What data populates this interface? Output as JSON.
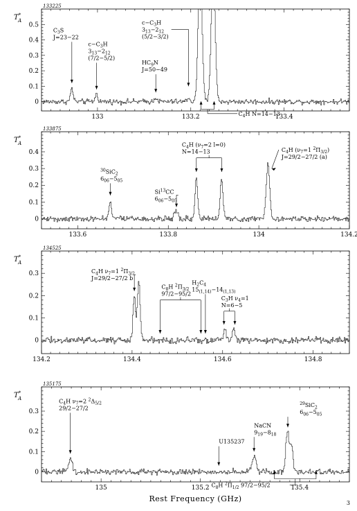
{
  "page_number": "3",
  "chart_data": [
    {
      "type": "line",
      "id": "133225",
      "ylabel": "T",
      "ylabel_sup": "*",
      "ylabel_sub": "A",
      "xlim": [
        132.88,
        133.54
      ],
      "ylim": [
        -0.06,
        0.6
      ],
      "xticks": [
        133,
        133.2,
        133.4
      ],
      "xtick_labels": [
        "133",
        "133.2",
        "133.4"
      ],
      "yticks": [
        0,
        0.1,
        0.2,
        0.3,
        0.4,
        0.5
      ],
      "ytick_labels": [
        "0",
        "0.1",
        "0.2",
        "0.3",
        "0.4",
        "0.5"
      ],
      "noise": 0.012,
      "peaks": [
        {
          "x": 132.945,
          "h": 0.085,
          "w": 0.003
        },
        {
          "x": 132.998,
          "h": 0.05,
          "w": 0.003
        },
        {
          "x": 133.125,
          "h": 0.03,
          "w": 0.003
        },
        {
          "x": 133.195,
          "h": 0.025,
          "w": 0.003
        },
        {
          "x": 133.22,
          "h": 0.9,
          "w": 0.004
        },
        {
          "x": 133.248,
          "h": 0.9,
          "w": 0.004
        }
      ],
      "annotations": [
        {
          "lines": [
            [
              "C",
              {
                "sub": "3"
              },
              "S"
            ],
            [
              "J=23−22"
            ]
          ],
          "x": 132.945,
          "lx": 132.905,
          "ly": 0.45,
          "ay": 0.12
        },
        {
          "lines": [
            [
              "c−C",
              {
                "sub": "3"
              },
              "H"
            ],
            [
              "3",
              {
                "sub": "13"
              },
              "−2",
              {
                "sub": "12"
              }
            ],
            [
              "(7/2−5/2)"
            ]
          ],
          "x": 132.998,
          "lx": 132.98,
          "ly": 0.36,
          "ay": 0.08
        },
        {
          "lines": [
            [
              "HC",
              {
                "sub": "9"
              },
              "N"
            ],
            [
              "J=50−49"
            ]
          ],
          "x": 133.125,
          "lx": 133.095,
          "ly": 0.24,
          "ay": 0.06
        },
        {
          "lines": [
            [
              "c−C",
              {
                "sub": "3"
              },
              "H"
            ],
            [
              "3",
              {
                "sub": "13"
              },
              "−2",
              {
                "sub": "12"
              }
            ],
            [
              "(5/2−3/2)"
            ]
          ],
          "x": 133.195,
          "lx": 133.095,
          "ly": 0.5,
          "ay": 0.1,
          "hook": true
        }
      ],
      "bracket": {
        "label": [
          [
            "C",
            {
              "sub": "4"
            },
            "H N=14−13"
          ]
        ],
        "x1": 133.222,
        "x2": 133.25,
        "y": -0.05
      }
    },
    {
      "type": "line",
      "id": "133875",
      "ylabel": "T",
      "ylabel_sup": "*",
      "ylabel_sub": "A",
      "xlim": [
        133.52,
        134.2
      ],
      "ylim": [
        -0.06,
        0.52
      ],
      "xticks": [
        133.6,
        133.8,
        134,
        134.2
      ],
      "xtick_labels": [
        "133.6",
        "133.8",
        "134",
        "134.2"
      ],
      "yticks": [
        0,
        0.1,
        0.2,
        0.3,
        0.4
      ],
      "ytick_labels": [
        "0",
        "0.1",
        "0.2",
        "0.3",
        "0.4"
      ],
      "noise": 0.012,
      "peaks": [
        {
          "x": 133.672,
          "h": 0.1,
          "w": 0.003
        },
        {
          "x": 133.818,
          "h": 0.05,
          "w": 0.004
        },
        {
          "x": 133.862,
          "h": 0.24,
          "w": 0.003
        },
        {
          "x": 133.918,
          "h": 0.24,
          "w": 0.003
        },
        {
          "x": 134.02,
          "h": 0.33,
          "w": 0.004
        }
      ],
      "annotations": [
        {
          "lines": [
            [
              {
                "sup": "30"
              },
              "SiC",
              {
                "sub": "2"
              }
            ],
            [
              "6",
              {
                "sub": "06"
              },
              "−5",
              {
                "sub": "05"
              }
            ]
          ],
          "x": 133.672,
          "lx": 133.65,
          "ly": 0.27,
          "ay": 0.14
        },
        {
          "lines": [
            [
              "Si",
              {
                "sup": "13"
              },
              "CC"
            ],
            [
              "6",
              {
                "sub": "06"
              },
              "−5",
              {
                "sub": "05"
              }
            ]
          ],
          "x": 133.818,
          "lx": 133.77,
          "ly": 0.15,
          "ay": 0.07,
          "hook": true
        },
        {
          "lines": [
            [
              "C",
              {
                "sub": "4"
              },
              "H (ν",
              {
                "sub": "7"
              },
              "=2 l=0)"
            ],
            [
              "N=14−13"
            ]
          ],
          "x": 133.862,
          "lx": 133.83,
          "ly": 0.43,
          "ay": 0.28,
          "x2": 133.918
        },
        {
          "lines": [
            [
              "C",
              {
                "sub": "4"
              },
              "H (ν",
              {
                "sub": "7"
              },
              "=1 ",
              {
                "sup": "2"
              },
              "Π",
              {
                "sub": "3/2"
              },
              ")"
            ],
            [
              "J=29/2−27/2 (a)"
            ]
          ],
          "x": 134.024,
          "lx": 134.05,
          "ly": 0.4,
          "ay": 0.3,
          "diag": true
        }
      ]
    },
    {
      "type": "line",
      "id": "134525",
      "ylabel": "T",
      "ylabel_sup": "*",
      "ylabel_sub": "A",
      "xlim": [
        134.2,
        134.88
      ],
      "ylim": [
        -0.06,
        0.4
      ],
      "xticks": [
        134.2,
        134.4,
        134.6,
        134.8
      ],
      "xtick_labels": [
        "134.2",
        "134.4",
        "134.6",
        "134.8"
      ],
      "yticks": [
        0,
        0.1,
        0.2,
        0.3
      ],
      "ytick_labels": [
        "0",
        "0.1",
        "0.2",
        "0.3"
      ],
      "noise": 0.01,
      "peaks": [
        {
          "x": 134.405,
          "h": 0.2,
          "w": 0.003
        },
        {
          "x": 134.415,
          "h": 0.26,
          "w": 0.003
        },
        {
          "x": 134.605,
          "h": 0.045,
          "w": 0.003
        },
        {
          "x": 134.625,
          "h": 0.06,
          "w": 0.003
        }
      ],
      "annotations": [
        {
          "lines": [
            [
              "C",
              {
                "sub": "4"
              },
              "H ν",
              {
                "sub": "7"
              },
              "=1 ",
              {
                "sup": "2"
              },
              "Π",
              {
                "sub": "3/2"
              }
            ],
            [
              "J=29/2−27/2 b"
            ]
          ],
          "x": 134.405,
          "lx": 134.31,
          "ly": 0.3,
          "ay": 0.22,
          "hook": true
        },
        {
          "lines": [
            [
              "C",
              {
                "sub": "8"
              },
              "H ",
              {
                "sup": "2"
              },
              "Π",
              {
                "sub": "3/2"
              }
            ],
            [
              "97/2−95/2"
            ]
          ],
          "x": 134.462,
          "lx": 134.465,
          "ly": 0.23,
          "ay": 0.03,
          "x2": 134.552
        },
        {
          "lines": [
            [
              "H",
              {
                "sub": "2"
              },
              "C",
              {
                "sub": "4"
              }
            ],
            [
              "15",
              {
                "sub": "(1,14)"
              },
              "−14",
              {
                "sub": "(1,13)"
              }
            ]
          ],
          "x": 134.562,
          "lx": 134.532,
          "ly": 0.25,
          "ay": 0.03
        },
        {
          "lines": [
            [
              "C",
              {
                "sub": "3"
              },
              "H ν",
              {
                "sub": "4"
              },
              "=1"
            ],
            [
              "N=6−5"
            ]
          ],
          "x": 134.603,
          "lx": 134.597,
          "ly": 0.18,
          "ay": 0.07,
          "x2": 134.627
        }
      ]
    },
    {
      "type": "line",
      "id": "135175",
      "ylabel": "T",
      "ylabel_sup": "*",
      "ylabel_sub": "A",
      "xlim": [
        134.88,
        135.5
      ],
      "ylim": [
        -0.05,
        0.42
      ],
      "xticks": [
        135,
        135.2,
        135.4
      ],
      "xtick_labels": [
        "135",
        "135.2",
        "135.4"
      ],
      "yticks": [
        0,
        0.1,
        0.2,
        0.3
      ],
      "ytick_labels": [
        "0",
        "0.1",
        "0.2",
        "0.3"
      ],
      "xlabel": "Rest Frequency (GHz)",
      "noise": 0.01,
      "peaks": [
        {
          "x": 134.938,
          "h": 0.06,
          "w": 0.004
        },
        {
          "x": 135.308,
          "h": 0.08,
          "w": 0.004
        },
        {
          "x": 135.375,
          "h": 0.2,
          "w": 0.003
        },
        {
          "x": 135.383,
          "h": 0.13,
          "w": 0.003
        }
      ],
      "annotations": [
        {
          "lines": [
            [
              "C",
              {
                "sub": "4"
              },
              "H ν",
              {
                "sub": "7"
              },
              "=2 ",
              {
                "sup": "2"
              },
              "Δ",
              {
                "sub": "5/2"
              }
            ],
            [
              "29/2−27/2"
            ]
          ],
          "x": 134.938,
          "lx": 134.915,
          "ly": 0.34,
          "ay": 0.09
        },
        {
          "lines": [
            [
              "U135237"
            ]
          ],
          "x": 135.237,
          "lx": 135.237,
          "ly": 0.14,
          "ay": 0.03
        },
        {
          "lines": [
            [
              "NaCN"
            ],
            [
              "9",
              {
                "sub": "19"
              },
              "−8",
              {
                "sub": "18"
              }
            ]
          ],
          "x": 135.308,
          "lx": 135.308,
          "ly": 0.22,
          "ay": 0.1
        },
        {
          "lines": [
            [
              {
                "sup": "29"
              },
              "SiC",
              {
                "sub": "2"
              }
            ],
            [
              "6",
              {
                "sub": "06"
              },
              "−5",
              {
                "sub": "05"
              }
            ]
          ],
          "x": 135.376,
          "lx": 135.4,
          "ly": 0.32,
          "ay": 0.22
        }
      ],
      "bracket": {
        "label": [
          [
            "C",
            {
              "sub": "8"
            },
            "H ",
            {
              "sup": "2"
            },
            "Π",
            {
              "sub": "1/2"
            },
            " 97/2−95/2"
          ]
        ],
        "x1": 135.349,
        "x2": 135.433,
        "y": -0.035
      }
    }
  ]
}
